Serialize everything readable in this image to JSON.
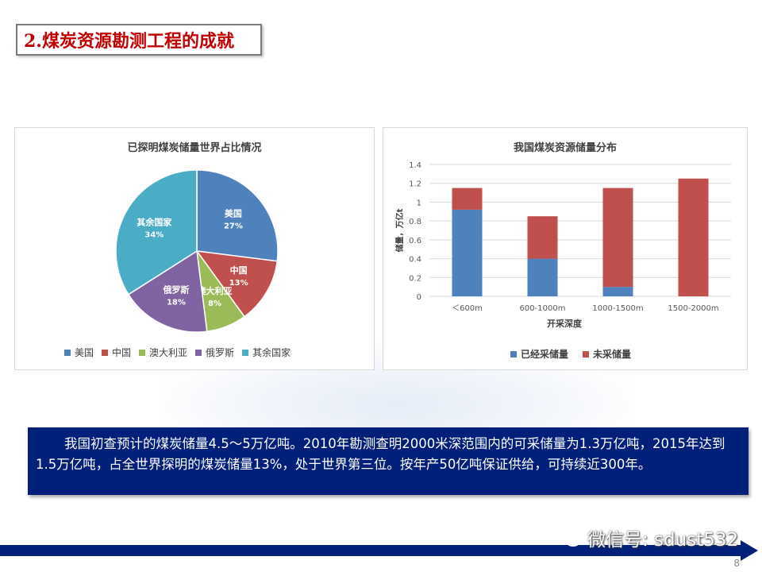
{
  "slide": {
    "title": "2.煤炭资源勘测工程的成就",
    "paragraph": "我国初查预计的煤炭储量4.5～5万亿吨。2010年勘测查明2000米深范围内的可采储量为1.3万亿吨，2015年达到1.5万亿吨，占全世界探明的煤炭储量13%，处于世界第三位。按年产50亿吨保证供给，可持续近300年。",
    "watermark": "微信号: sdust532",
    "page_number": "8"
  },
  "chart_data": [
    {
      "type": "pie",
      "title": "已探明煤炭储量世界占比情况",
      "categories": [
        "美国",
        "中国",
        "澳大利亚",
        "俄罗斯",
        "其余国家"
      ],
      "values": [
        27,
        13,
        8,
        18,
        34
      ],
      "value_labels": [
        "27%",
        "13%",
        "8%",
        "18%",
        "34%"
      ],
      "colors": [
        "#4f81bd",
        "#c0504d",
        "#9bbb59",
        "#8064a2",
        "#4bacc6"
      ],
      "legend": "bottom"
    },
    {
      "type": "bar",
      "stacked": true,
      "title": "我国煤炭资源储量分布",
      "categories": [
        "＜600m",
        "600-1000m",
        "1000-1500m",
        "1500-2000m"
      ],
      "series": [
        {
          "name": "已经采储量",
          "values": [
            0.92,
            0.4,
            0.1,
            0.0
          ],
          "color": "#4f81bd"
        },
        {
          "name": "未采储量",
          "values": [
            0.23,
            0.45,
            1.05,
            1.25
          ],
          "color": "#c0504d"
        }
      ],
      "xlabel": "开采深度",
      "ylabel": "储量，万亿t",
      "ylim": [
        0,
        1.4
      ],
      "yticks": [
        "0",
        "0.2",
        "0.4",
        "0.6",
        "0.8",
        "1",
        "1.2",
        "1.4"
      ],
      "grid": true,
      "legend": "bottom"
    }
  ]
}
